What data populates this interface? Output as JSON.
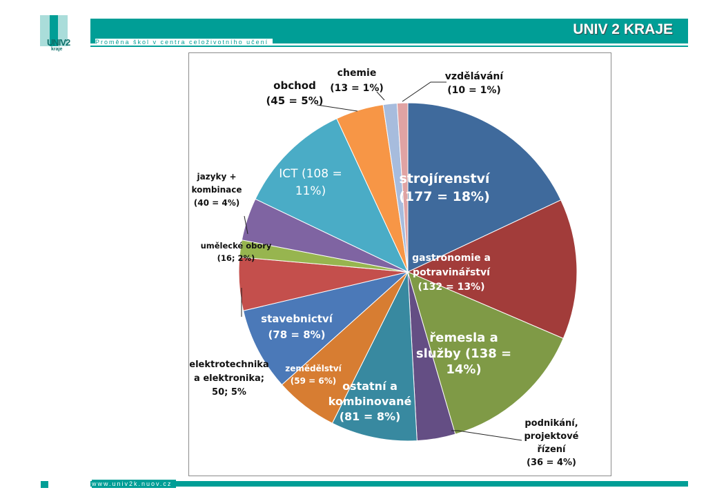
{
  "header": {
    "title": "UNIV 2 KRAJE",
    "tagline": "Proměna škol v centra celoživotního učení",
    "logo_text": "UNIV2",
    "logo_sub": "kraje"
  },
  "footer": {
    "url": "www.univ2k.nuov.cz"
  },
  "colors": {
    "brand": "#009e96"
  },
  "chart_data": {
    "type": "pie",
    "title": "",
    "slices": [
      {
        "value": 177,
        "color": "#3f6a9c",
        "label": [
          "strojírenství",
          "(177 = 18%)"
        ]
      },
      {
        "value": 132,
        "color": "#a23c3a",
        "label": [
          "gastronomie a",
          "potravinářství",
          "(132 = 13%)"
        ]
      },
      {
        "value": 138,
        "color": "#7f9a46",
        "label": [
          "řemesla a",
          "služby (138 =",
          "14%)"
        ]
      },
      {
        "value": 36,
        "color": "#644e84",
        "label": [
          "podnikání,",
          "projektové",
          "řízení",
          "(36 = 4%)"
        ]
      },
      {
        "value": 81,
        "color": "#3889a0",
        "label": [
          "ostatní a",
          "kombinované",
          "(81 = 8%)"
        ]
      },
      {
        "value": 59,
        "color": "#d77d32",
        "label": [
          "zemědělství",
          "(59 = 6%)"
        ]
      },
      {
        "value": 78,
        "color": "#4b79b8",
        "label": [
          "stavebnictví",
          "(78 = 8%)"
        ]
      },
      {
        "value": 50,
        "color": "#c44f4c",
        "label": [
          "elektrotechnika",
          "a elektronika;",
          "50; 5%"
        ]
      },
      {
        "value": 16,
        "color": "#97b54f",
        "label": [
          "umělecké obory",
          "(16; 2%)"
        ]
      },
      {
        "value": 40,
        "color": "#7f64a2",
        "label": [
          "jazyky +",
          "kombinace",
          "(40 = 4%)"
        ]
      },
      {
        "value": 108,
        "color": "#4aacc6",
        "label": [
          "ICT (108 =",
          "11%)"
        ]
      },
      {
        "value": 45,
        "color": "#f79646",
        "label": [
          "obchod",
          "(45 = 5%)"
        ]
      },
      {
        "value": 13,
        "color": "#a7bcdd",
        "label": [
          "chemie",
          "(13 = 1%)"
        ]
      },
      {
        "value": 10,
        "color": "#e0a3a3",
        "label": [
          "vzdělávání",
          "(10 = 1%)"
        ]
      }
    ]
  }
}
